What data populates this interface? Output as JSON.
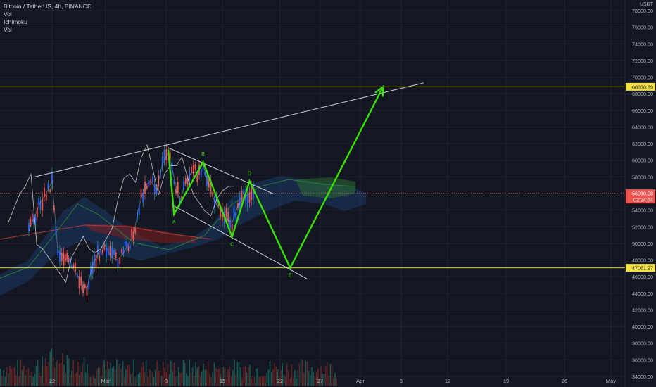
{
  "header": {
    "symbol_line": "Bitcoin / TetherUS, 4h, BINANCE",
    "indicators": [
      "Vol",
      "Ichimoku",
      "Vol"
    ],
    "unit": "USDT"
  },
  "colors": {
    "background": "#131722",
    "grid": "#1f2430",
    "up": "#26a69a",
    "down": "#ef5350",
    "wave": "#39e000",
    "trendline": "#d1d4dc",
    "level": "#f5e142",
    "current": "#ef5350",
    "cloud": "#1e4a8a",
    "cloud_green": "#2e7d32",
    "cloud_red": "#8b1e1e"
  },
  "chart_data": {
    "type": "line",
    "title": "Bitcoin / TetherUS, 4h, BINANCE",
    "x_axis_labels": [
      "22",
      "Mar",
      "8",
      "15",
      "22",
      "27",
      "Apr",
      "6",
      "12",
      "19",
      "26",
      "May"
    ],
    "y_axis_labels": [
      "78000.00",
      "76000.00",
      "74000.00",
      "72000.00",
      "70000.00",
      "68000.00",
      "66000.00",
      "64000.00",
      "62000.00",
      "60000.00",
      "58000.00",
      "54000.00",
      "52000.00",
      "50000.00",
      "48000.00",
      "46000.00",
      "44000.00",
      "42000.00",
      "40000.00",
      "38000.00",
      "36000.00",
      "34000.00"
    ],
    "ylim": [
      33500,
      79500
    ],
    "grid": true,
    "price_series": {
      "name": "BTCUSDT",
      "x": [
        "Feb 18",
        "Feb 20",
        "Feb 21",
        "Feb 22",
        "Feb 23",
        "Feb 24",
        "Feb 26",
        "Feb 27",
        "Feb 28",
        "Mar 1",
        "Mar 3",
        "Mar 4",
        "Mar 5",
        "Mar 6",
        "Mar 8",
        "Mar 9",
        "Mar 10",
        "Mar 11",
        "Mar 12",
        "Mar 13",
        "Mar 14",
        "Mar 15",
        "Mar 16",
        "Mar 17",
        "Mar 18",
        "Mar 19",
        "Mar 20",
        "Mar 21",
        "Mar 22",
        "Mar 23",
        "Mar 24",
        "Mar 25",
        "Mar 26",
        "Mar 27",
        "Mar 28",
        "Mar 29"
      ],
      "y": [
        51500,
        55000,
        56000,
        57500,
        49000,
        48500,
        46500,
        45500,
        44500,
        47500,
        50000,
        48500,
        48000,
        48500,
        51000,
        54500,
        57000,
        57500,
        56500,
        59500,
        61000,
        58000,
        55000,
        57500,
        58500,
        58500,
        59500,
        57000,
        55000,
        54000,
        53000,
        52500,
        54500,
        55500,
        56000,
        56030
      ]
    },
    "wave_pattern": {
      "name": "ABCDE",
      "points": [
        {
          "label": "",
          "x": "Mar 14",
          "y": 61300
        },
        {
          "label": "A",
          "x": "Mar 15",
          "y": 53500
        },
        {
          "label": "B",
          "x": "Mar 20",
          "y": 59800
        },
        {
          "label": "C",
          "x": "Mar 25",
          "y": 50800
        },
        {
          "label": "D",
          "x": "Mar 28",
          "y": 57500
        },
        {
          "label": "E",
          "x": "Apr 4",
          "y": 47061.27
        },
        {
          "label": "",
          "x": "Apr 20",
          "y": 68830.89
        }
      ]
    },
    "trendlines": [
      {
        "from": {
          "x": "Feb 19",
          "y": 58000
        },
        "to": {
          "x": "Apr 27",
          "y": 69300
        }
      },
      {
        "from": {
          "x": "Mar 14",
          "y": 61500
        },
        "to": {
          "x": "Apr 1",
          "y": 56000
        }
      },
      {
        "from": {
          "x": "Mar 15",
          "y": 54500
        },
        "to": {
          "x": "Apr 7",
          "y": 45700
        }
      }
    ],
    "price_labels": [
      {
        "value": "68830.89",
        "y": 68830.89,
        "color": "#f5e142",
        "text_color": "#131722"
      },
      {
        "value": "56030.08",
        "y": 56030.08,
        "color": "#ef5350",
        "text_color": "#ffffff",
        "sub": "02:24:34"
      },
      {
        "value": "47061.27",
        "y": 47061.27,
        "color": "#f5e142",
        "text_color": "#131722"
      }
    ]
  }
}
